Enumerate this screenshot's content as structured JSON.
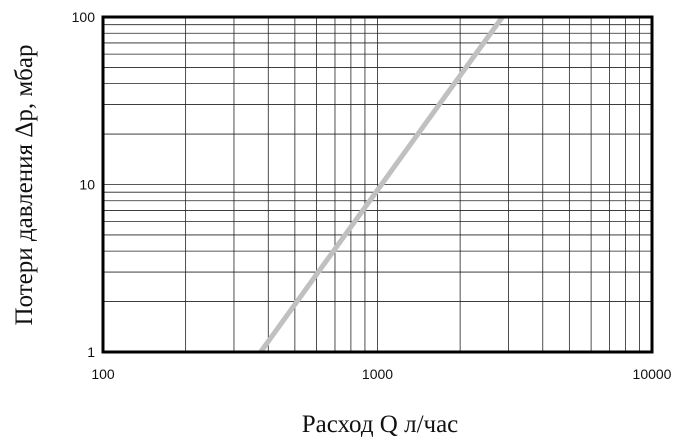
{
  "chart_data": {
    "type": "line",
    "title": "",
    "xlabel": "Расход Q л/час",
    "ylabel": "Потери давления Δp, мбар",
    "x_scale": "log",
    "y_scale": "log",
    "xlim": [
      100,
      10000
    ],
    "ylim": [
      1,
      100
    ],
    "x_ticks": [
      100,
      1000,
      10000
    ],
    "x_tick_labels": [
      "100",
      "1000",
      "10000"
    ],
    "y_ticks": [
      1,
      10,
      100
    ],
    "y_tick_labels": [
      "1",
      "10",
      "100"
    ],
    "grid": "minor and major, both axes",
    "legend": "none",
    "series": [
      {
        "x": [
          375,
          2850
        ],
        "y": [
          1,
          100
        ],
        "color": "#c0c0c0"
      }
    ]
  }
}
